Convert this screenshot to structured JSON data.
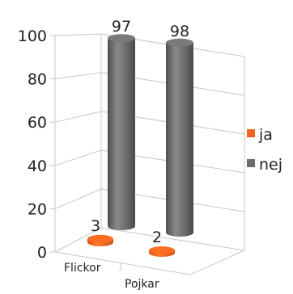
{
  "chart_data": {
    "type": "bar",
    "style": "3d-cylinder",
    "categories": [
      "Flickor",
      "Pojkar"
    ],
    "series": [
      {
        "name": "ja",
        "values": [
          3,
          2
        ],
        "color": "#f26522"
      },
      {
        "name": "nej",
        "values": [
          97,
          98
        ],
        "color": "#6d6d6d"
      }
    ],
    "ylim": [
      0,
      100
    ],
    "yticks": [
      "0",
      "20",
      "40",
      "60",
      "80",
      "100"
    ],
    "data_labels": {
      "ja": [
        "3",
        "2"
      ],
      "nej": [
        "97",
        "98"
      ]
    },
    "grid": true,
    "legend": "right"
  }
}
